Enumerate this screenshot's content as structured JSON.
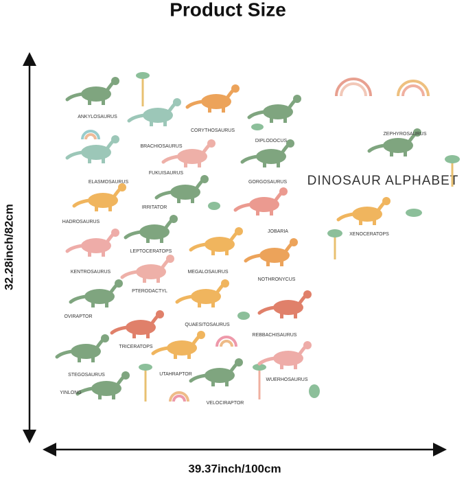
{
  "title": "Product Size",
  "height_label": "32.28inch/82cm",
  "width_label": "39.37inch/100cm",
  "sheet_title": "DINOSAUR ALPHABET",
  "dinosaurs": [
    "ANKYLOSAURUS",
    "BRACHIOSAURUS",
    "CORYTHOSAURUS",
    "DIPLODOCUS",
    "ELASMOSAURUS",
    "FUKUISAURUS",
    "GORGOSAURUS",
    "HADROSAURUS",
    "IRRITATOR",
    "JOBARIA",
    "KENTROSAURUS",
    "LEPTOCERATOPS",
    "MEGALOSAURUS",
    "NOTHRONYCUS",
    "OVIRAPTOR",
    "PTERODACTYL",
    "QUAESITOSAURUS",
    "REBBACHISAURUS",
    "STEGOSAURUS",
    "TRICERATOPS",
    "UTAHRAPTOR",
    "VELOCIRAPTOR",
    "WUERHOSAURUS",
    "XENOCERATOPS",
    "YINLONG",
    "ZEPHYROSAURUS"
  ]
}
